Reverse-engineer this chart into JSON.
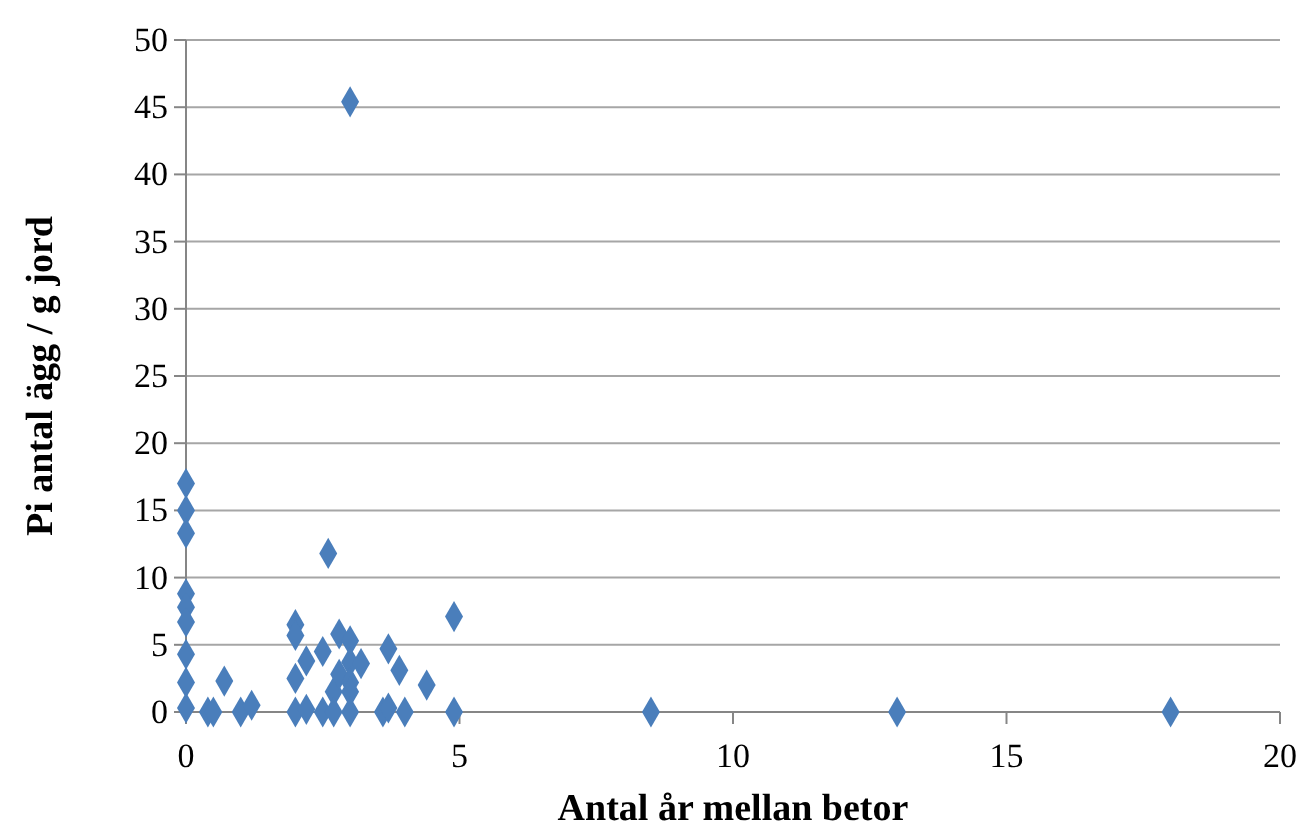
{
  "chart_data": {
    "type": "scatter",
    "xlabel": "Antal år mellan betor",
    "ylabel": "Pi antal ägg / g jord",
    "x": [
      0,
      0,
      0,
      0,
      0,
      0,
      0,
      0,
      0,
      0.4,
      0.5,
      0.7,
      1.0,
      1.2,
      2,
      2,
      2,
      2,
      2.2,
      2.2,
      2.5,
      2.5,
      2.6,
      2.7,
      2.7,
      2.8,
      2.8,
      3,
      3,
      3,
      3,
      3,
      3,
      3.2,
      3.6,
      3.7,
      3.7,
      3.9,
      4.0,
      4.4,
      4.9,
      4.9,
      8.5,
      13,
      18
    ],
    "values": [
      17,
      15,
      13.3,
      8.8,
      7.8,
      6.7,
      4.3,
      2.2,
      0.3,
      0,
      0,
      2.3,
      0,
      0.5,
      6.5,
      5.7,
      2.5,
      0,
      3.8,
      0.2,
      0,
      4.5,
      11.8,
      1.5,
      0,
      5.8,
      2.8,
      5.3,
      3.7,
      2.2,
      1.5,
      0,
      45.4,
      3.6,
      0,
      4.7,
      0.3,
      3.1,
      0,
      2.0,
      7.1,
      0,
      0,
      0,
      0
    ],
    "color": "#4a7ebb",
    "marker": "diamond",
    "grid": "y",
    "xlim": [
      0,
      20
    ],
    "xticks": [
      0,
      5,
      10,
      15,
      20
    ],
    "ylim": [
      0,
      50
    ],
    "yticks": [
      0,
      5,
      10,
      15,
      20,
      25,
      30,
      35,
      40,
      45,
      50
    ]
  }
}
